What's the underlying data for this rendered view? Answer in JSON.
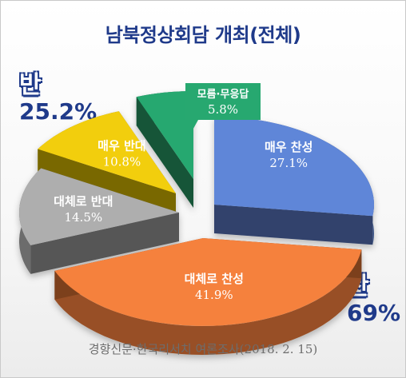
{
  "title": "남북정상회담  개최(전체)",
  "summary": {
    "against_label": "반",
    "against_pct": "25.2%",
    "for_label": "찬",
    "for_pct": "69%"
  },
  "footer": "경향신문·한국리서치 여론조사(2018.  2.  15)",
  "colors": {
    "strongly_agree": "#5f86d8",
    "somewhat_agree": "#f5813c",
    "somewhat_disagree": "#aeaeae",
    "strongly_disagree": "#f2ce0a",
    "unsure": "#27a870",
    "title": "#1f3a8a"
  },
  "chart_data": {
    "type": "pie",
    "title": "남북정상회담  개최(전체)",
    "slices": [
      {
        "label": "매우 찬성",
        "value": 27.1,
        "display": "27.1%",
        "color": "#5f86d8"
      },
      {
        "label": "대체로 찬성",
        "value": 41.9,
        "display": "41.9%",
        "color": "#f5813c"
      },
      {
        "label": "대체로 반대",
        "value": 14.5,
        "display": "14.5%",
        "color": "#aeaeae"
      },
      {
        "label": "매우 반대",
        "value": 10.8,
        "display": "10.8%",
        "color": "#f2ce0a"
      },
      {
        "label": "모름·무응답",
        "value": 5.8,
        "display": "5.8%",
        "color": "#27a870"
      }
    ],
    "groups": [
      {
        "label": "찬",
        "value": 69
      },
      {
        "label": "반",
        "value": 25.2
      }
    ]
  }
}
